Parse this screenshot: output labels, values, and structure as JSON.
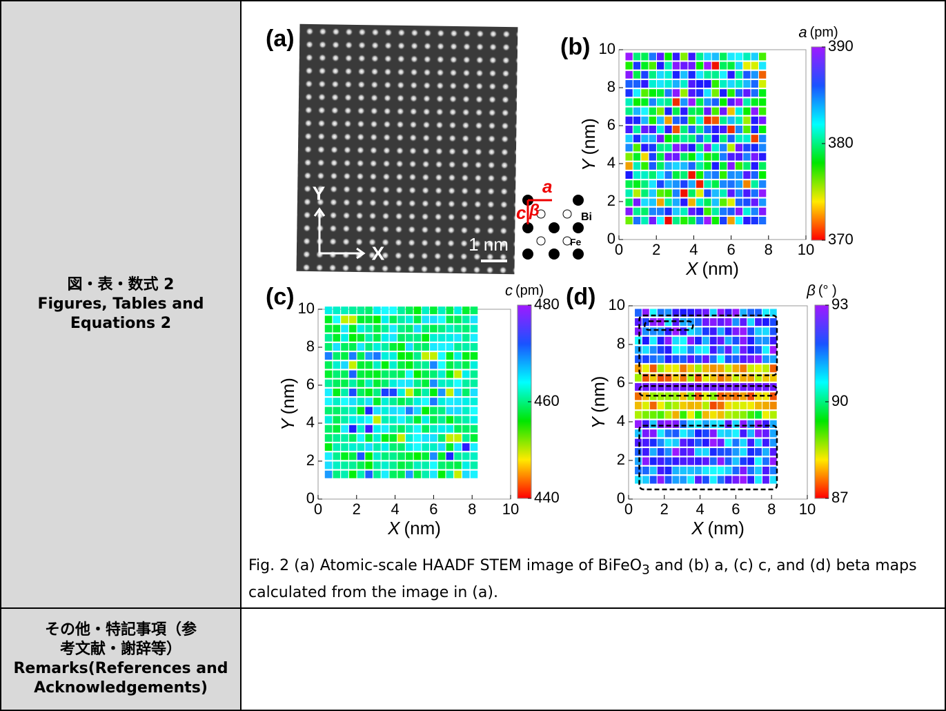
{
  "rows": [
    {
      "label": [
        "図・表・数式 2",
        "Figures, Tables and Equations 2"
      ],
      "figure": {
        "image_panel": {
          "label": "(a)",
          "y_arrow": "Y",
          "x_arrow": "X",
          "scale": "1 nm",
          "lattice_a": "a",
          "lattice_c": "c",
          "lattice_beta": "β",
          "bi": "Bi",
          "fe": "Fe"
        },
        "maps": [
          {
            "label": "(b)",
            "xlim": [
              0,
              10
            ],
            "ylim": [
              0,
              10
            ],
            "xticks": [
              0,
              2,
              4,
              6,
              8,
              10
            ],
            "yticks": [
              0,
              2,
              4,
              6,
              8,
              10
            ],
            "x_var": "X",
            "x_unit": "(nm)",
            "y_var": "Y",
            "y_unit": "(nm)",
            "cbar_var": "a",
            "cbar_unit": "(pm)",
            "clim": [
              370,
              390
            ],
            "cticks": [
              370,
              380,
              390
            ]
          },
          {
            "label": "(c)",
            "xlim": [
              0,
              10
            ],
            "ylim": [
              0,
              10
            ],
            "xticks": [
              0,
              2,
              4,
              6,
              8,
              10
            ],
            "yticks": [
              0,
              2,
              4,
              6,
              8,
              10
            ],
            "x_var": "X",
            "x_unit": "(nm)",
            "y_var": "Y",
            "y_unit": "(nm)",
            "cbar_var": "c",
            "cbar_unit": "(pm)",
            "clim": [
              440,
              480
            ],
            "cticks": [
              440,
              460,
              480
            ]
          },
          {
            "label": "(d)",
            "xlim": [
              0,
              10
            ],
            "ylim": [
              0,
              10
            ],
            "xticks": [
              0,
              2,
              4,
              6,
              8,
              10
            ],
            "yticks": [
              0,
              2,
              4,
              6,
              8,
              10
            ],
            "x_var": "X",
            "x_unit": "(nm)",
            "y_var": "Y",
            "y_unit": "(nm)",
            "cbar_var": "β",
            "cbar_unit": "(° )",
            "clim": [
              87,
              93
            ],
            "cticks": [
              87,
              90,
              93
            ]
          }
        ]
      },
      "caption": {
        "before": "Fig. 2 (a) Atomic-scale HAADF STEM image of BiFeO",
        "sub": "3",
        "after": " and (b) a, (c) c, and (d) beta maps calculated from the image in (a)."
      }
    },
    {
      "label": [
        "その他・特記事項（参考文献・謝辞等）",
        "Remarks(References and Acknowledgements)"
      ]
    }
  ]
}
